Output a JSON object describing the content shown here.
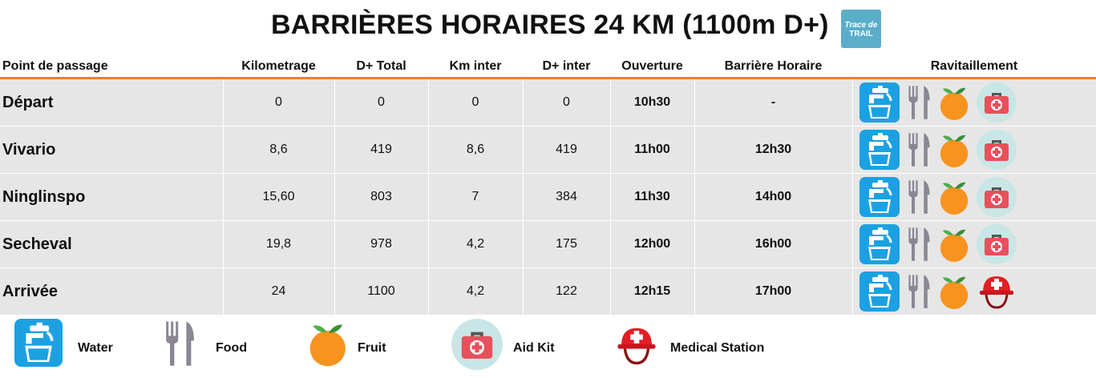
{
  "header": {
    "title": "BARRIÈRES HORAIRES 24 KM (1100m D+)",
    "logo_line1": "Trace de",
    "logo_line2": "TRAIL"
  },
  "table": {
    "columns": [
      "Point de passage",
      "Kilometrage",
      "D+ Total",
      "Km inter",
      "D+ inter",
      "Ouverture",
      "Barrière Horaire",
      "Ravitaillement"
    ],
    "rows": [
      {
        "name": "Départ",
        "km": "0",
        "dplus_total": "0",
        "km_inter": "0",
        "dplus_inter": "0",
        "ouverture": "10h30",
        "barriere": "-",
        "ravit": [
          "water-icon",
          "food-icon",
          "fruit-icon",
          "aid-kit-icon"
        ]
      },
      {
        "name": "Vivario",
        "km": "8,6",
        "dplus_total": "419",
        "km_inter": "8,6",
        "dplus_inter": "419",
        "ouverture": "11h00",
        "barriere": "12h30",
        "ravit": [
          "water-icon",
          "food-icon",
          "fruit-icon",
          "aid-kit-icon"
        ]
      },
      {
        "name": "Ninglinspo",
        "km": "15,60",
        "dplus_total": "803",
        "km_inter": "7",
        "dplus_inter": "384",
        "ouverture": "11h30",
        "barriere": "14h00",
        "ravit": [
          "water-icon",
          "food-icon",
          "fruit-icon",
          "aid-kit-icon"
        ]
      },
      {
        "name": "Secheval",
        "km": "19,8",
        "dplus_total": "978",
        "km_inter": "4,2",
        "dplus_inter": "175",
        "ouverture": "12h00",
        "barriere": "16h00",
        "ravit": [
          "water-icon",
          "food-icon",
          "fruit-icon",
          "aid-kit-icon"
        ]
      },
      {
        "name": "Arrivée",
        "km": "24",
        "dplus_total": "1100",
        "km_inter": "4,2",
        "dplus_inter": "122",
        "ouverture": "12h15",
        "barriere": "17h00",
        "ravit": [
          "water-icon",
          "food-icon",
          "fruit-icon",
          "medical-station-icon"
        ]
      }
    ]
  },
  "legend": {
    "water": "Water",
    "food": "Food",
    "fruit": "Fruit",
    "aid_kit": "Aid Kit",
    "medical_station": "Medical Station"
  },
  "colors": {
    "accent_line": "#ed7d31",
    "row_bg": "#e7e6e6",
    "opening": "#1e9e4a",
    "barrier": "#ee1c1c",
    "water_blue": "#1ba1e2"
  }
}
